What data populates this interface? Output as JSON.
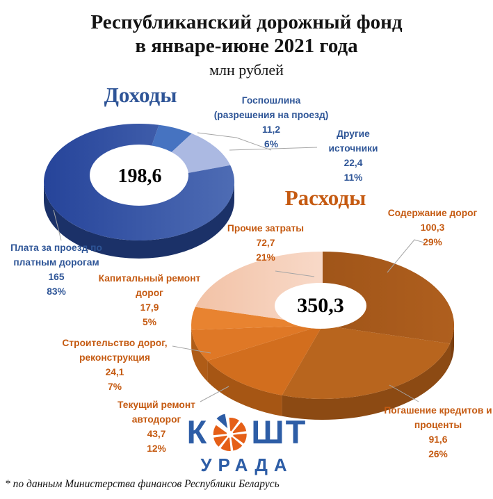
{
  "title": {
    "line1": "Республиканский дорожный фонд",
    "line2": "в январе-июне 2021 года",
    "subtitle": "млн рублей"
  },
  "footnote": "* по данным Министерства финансов Республики Беларусь",
  "logo": {
    "k": "К",
    "sht": "ШТ",
    "bottom": "УРАДА",
    "blue": "#2d5da6",
    "orange": "#e55f17"
  },
  "chart_data": [
    {
      "type": "pie",
      "variant": "3d-donut",
      "title": "Доходы",
      "center_total": "198,6",
      "units": "млн рублей",
      "heading_color": "#2F5597",
      "label_color": "#2E5597",
      "start_angle": 12,
      "legend_position": "callout-labels",
      "slices": [
        {
          "label_lines": [
            "Госпошлина",
            "(разрешения на проезд)"
          ],
          "value": "11,2",
          "percent": "6%",
          "pct": 6,
          "color": "#4673C1"
        },
        {
          "label_lines": [
            "Другие",
            "источники"
          ],
          "value": "22,4",
          "percent": "11%",
          "pct": 11,
          "color": "#ABB9E2"
        },
        {
          "label_lines": [
            "Плата за проезд по",
            "платным дорогам"
          ],
          "value": "165",
          "percent": "83%",
          "pct": 83,
          "color": "#26449A",
          "color2": "#4E6CB4",
          "side": "#1B3168"
        }
      ]
    },
    {
      "type": "pie",
      "variant": "3d-donut",
      "title": "Расходы",
      "center_total": "350,3",
      "units": "млн рублей",
      "heading_color": "#C55A11",
      "label_color": "#C55A11",
      "start_angle": 0,
      "legend_position": "callout-labels",
      "slices": [
        {
          "label_lines": [
            "Содержание дорог"
          ],
          "value": "100,3",
          "percent": "29%",
          "pct": 29,
          "color": "#A05519",
          "color2": "#AF5F1E",
          "side": "#7C3F0F"
        },
        {
          "label_lines": [
            "Погашение кредитов и",
            "проценты"
          ],
          "value": "91,6",
          "percent": "26%",
          "pct": 26,
          "color": "#B8651E",
          "side": "#8C4A13"
        },
        {
          "label_lines": [
            "Текущий ремонт",
            "автодорог"
          ],
          "value": "43,7",
          "percent": "12%",
          "pct": 12,
          "color": "#D26E1E",
          "side": "#A65614"
        },
        {
          "label_lines": [
            "Строительство дорог,",
            "реконструкция"
          ],
          "value": "24,1",
          "percent": "7%",
          "pct": 7,
          "color": "#DF7826",
          "side": "#AF5C17"
        },
        {
          "label_lines": [
            "Капитальный ремонт",
            "дорог"
          ],
          "value": "17,9",
          "percent": "5%",
          "pct": 5,
          "color": "#E88330",
          "side": "#B9631A"
        },
        {
          "label_lines": [
            "Прочие затраты"
          ],
          "value": "72,7",
          "percent": "21%",
          "pct": 21,
          "color": "#F2C2A6",
          "color2": "#F8D9C8"
        }
      ]
    }
  ]
}
